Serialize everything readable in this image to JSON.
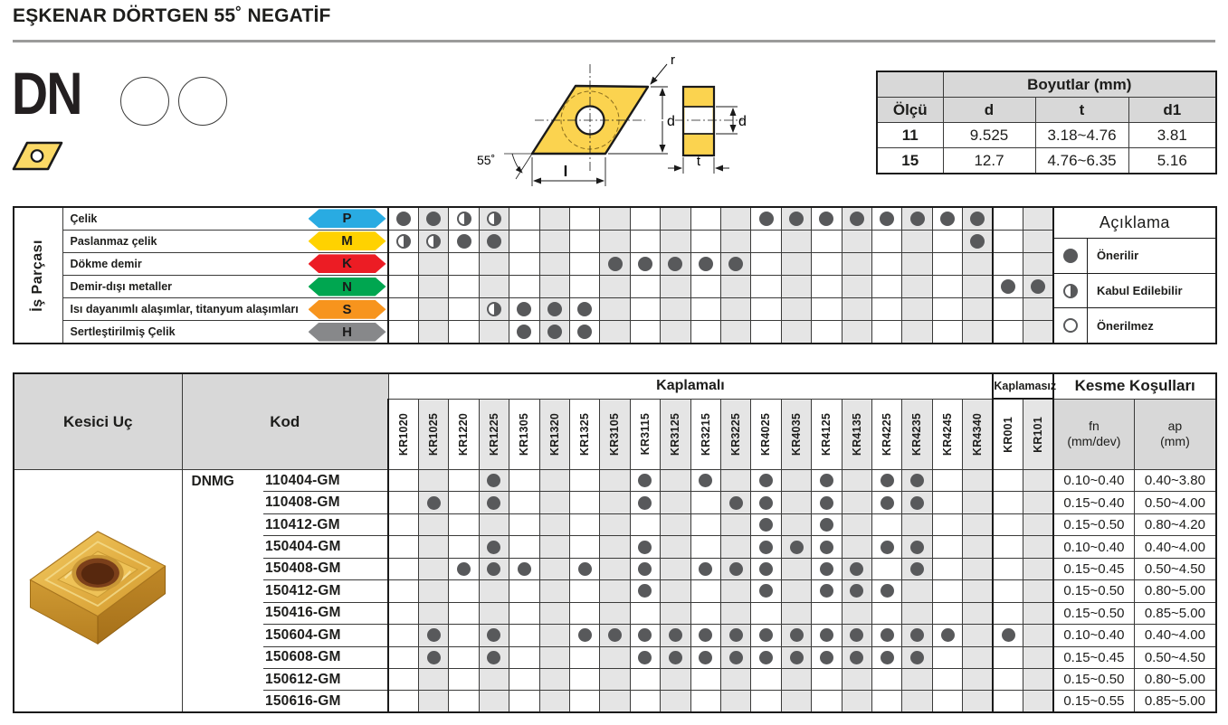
{
  "page_title": "EŞKENAR DÖRTGEN 55˚ NEGATİF",
  "designation": "DN",
  "drawing": {
    "front": {
      "r": "r",
      "d": "d",
      "l": "l",
      "angle": "55˚"
    },
    "side": {
      "d": "d",
      "t": "t"
    }
  },
  "dimensions_table": {
    "title": "Boyutlar (mm)",
    "col_headers": [
      "Ölçü",
      "d",
      "t",
      "d1"
    ],
    "rows": [
      [
        "11",
        "9.525",
        "3.18~4.76",
        "3.81"
      ],
      [
        "15",
        "12.7",
        "4.76~6.35",
        "5.16"
      ]
    ]
  },
  "workpiece_panel": {
    "side_label": "İş Parçası",
    "rows": [
      {
        "name": "Çelik",
        "code": "P",
        "color": "#29abe2",
        "ratings": [
          "full",
          "full",
          "half",
          "half",
          "",
          "",
          "",
          "",
          "",
          "",
          "",
          "",
          "full",
          "full",
          "full",
          "full",
          "full",
          "full",
          "full",
          "full",
          "",
          ""
        ]
      },
      {
        "name": "Paslanmaz çelik",
        "code": "M",
        "color": "#ffd200",
        "ratings": [
          "half",
          "half",
          "full",
          "full",
          "",
          "",
          "",
          "",
          "",
          "",
          "",
          "",
          "",
          "",
          "",
          "",
          "",
          "",
          "",
          "full",
          "",
          ""
        ]
      },
      {
        "name": "Dökme demir",
        "code": "K",
        "color": "#ec1c24",
        "ratings": [
          "",
          "",
          "",
          "",
          "",
          "",
          "",
          "full",
          "full",
          "full",
          "full",
          "full",
          "",
          "",
          "",
          "",
          "",
          "",
          "",
          "",
          "",
          ""
        ]
      },
      {
        "name": "Demir-dışı metaller",
        "code": "N",
        "color": "#00a650",
        "ratings": [
          "",
          "",
          "",
          "",
          "",
          "",
          "",
          "",
          "",
          "",
          "",
          "",
          "",
          "",
          "",
          "",
          "",
          "",
          "",
          "",
          "full",
          "full"
        ]
      },
      {
        "name": "Isı dayanımlı alaşımlar, titanyum alaşımları",
        "code": "S",
        "color": "#f7941d",
        "ratings": [
          "",
          "",
          "",
          "half",
          "full",
          "full",
          "full",
          "",
          "",
          "",
          "",
          "",
          "",
          "",
          "",
          "",
          "",
          "",
          "",
          "",
          "",
          ""
        ]
      },
      {
        "name": "Sertleştirilmiş Çelik",
        "code": "H",
        "color": "#87888a",
        "ratings": [
          "",
          "",
          "",
          "",
          "full",
          "full",
          "full",
          "",
          "",
          "",
          "",
          "",
          "",
          "",
          "",
          "",
          "",
          "",
          "",
          "",
          "",
          ""
        ]
      }
    ],
    "legend": {
      "title": "Açıklama",
      "items": [
        {
          "symbol": "filled-circle",
          "label": "Önerilir"
        },
        {
          "symbol": "half-filled-circle",
          "label": "Kabul Edilebilir"
        },
        {
          "symbol": "empty-circle",
          "label": "Önerilmez"
        }
      ]
    }
  },
  "main_table": {
    "col_kesici": "Kesici Uç",
    "col_kod": "Kod",
    "group_coated": "Kaplamalı",
    "group_uncoated": "Kaplamasız",
    "group_cutting": "Kesme Koşulları",
    "fn_header": {
      "line1": "fn",
      "line2": "(mm/dev)"
    },
    "ap_header": {
      "line1": "ap",
      "line2": "(mm)"
    },
    "coated_count": 20,
    "grades": [
      "KR1020",
      "KR1025",
      "KR1220",
      "KR1225",
      "KR1305",
      "KR1320",
      "KR1325",
      "KR3105",
      "KR3115",
      "KR3125",
      "KR3215",
      "KR3225",
      "KR4025",
      "KR4035",
      "KR4125",
      "KR4135",
      "KR4225",
      "KR4235",
      "KR4245",
      "KR4340",
      "KR001",
      "KR101"
    ],
    "series": "DNMG",
    "rows": [
      {
        "code": "110404-GM",
        "dots": [
          3,
          8,
          10,
          12,
          14,
          16,
          17
        ],
        "fn": "0.10~0.40",
        "ap": "0.40~3.80"
      },
      {
        "code": "110408-GM",
        "dots": [
          1,
          3,
          8,
          11,
          12,
          14,
          16,
          17
        ],
        "fn": "0.15~0.40",
        "ap": "0.50~4.00"
      },
      {
        "code": "110412-GM",
        "dots": [
          12,
          14
        ],
        "fn": "0.15~0.50",
        "ap": "0.80~4.20"
      },
      {
        "code": "150404-GM",
        "dots": [
          3,
          8,
          12,
          13,
          14,
          16,
          17
        ],
        "fn": "0.10~0.40",
        "ap": "0.40~4.00"
      },
      {
        "code": "150408-GM",
        "dots": [
          2,
          3,
          4,
          6,
          8,
          10,
          11,
          12,
          14,
          15,
          17
        ],
        "fn": "0.15~0.45",
        "ap": "0.50~4.50"
      },
      {
        "code": "150412-GM",
        "dots": [
          8,
          12,
          14,
          15,
          16
        ],
        "fn": "0.15~0.50",
        "ap": "0.80~5.00"
      },
      {
        "code": "150416-GM",
        "dots": [],
        "fn": "0.15~0.50",
        "ap": "0.85~5.00"
      },
      {
        "code": "150604-GM",
        "dots": [
          1,
          3,
          6,
          7,
          8,
          9,
          10,
          11,
          12,
          13,
          14,
          15,
          16,
          17,
          18,
          20
        ],
        "fn": "0.10~0.40",
        "ap": "0.40~4.00"
      },
      {
        "code": "150608-GM",
        "dots": [
          1,
          3,
          8,
          9,
          10,
          11,
          12,
          13,
          14,
          15,
          16,
          17
        ],
        "fn": "0.15~0.45",
        "ap": "0.50~4.50"
      },
      {
        "code": "150612-GM",
        "dots": [],
        "fn": "0.15~0.50",
        "ap": "0.80~5.00"
      },
      {
        "code": "150616-GM",
        "dots": [],
        "fn": "0.15~0.55",
        "ap": "0.85~5.00"
      }
    ]
  }
}
